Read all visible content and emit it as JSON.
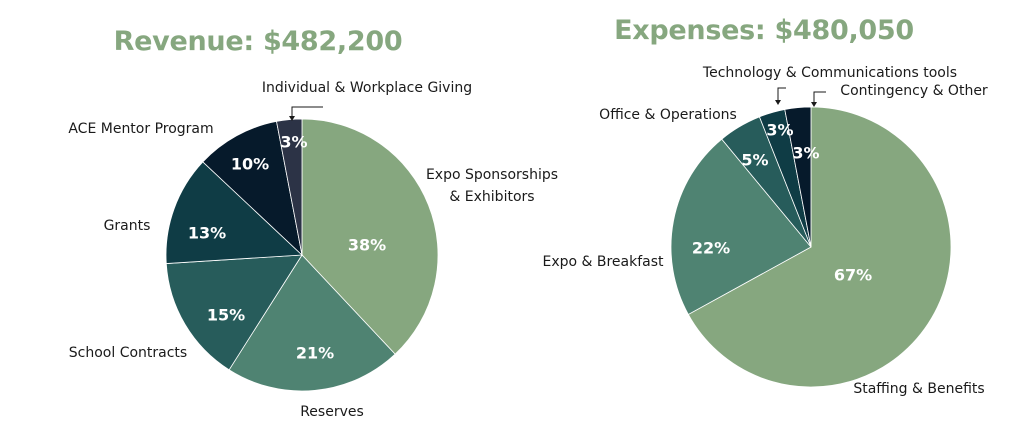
{
  "colors": {
    "title": "#86a77f",
    "label_text": "#1a1a1a",
    "pct_text": "#ffffff"
  },
  "chart_data": [
    {
      "type": "pie",
      "title": "Revenue: $482,200",
      "start": "12 o'clock",
      "direction": "clockwise",
      "slices": [
        {
          "label": "Expo Sponsorships\n& Exhibitors",
          "value": 38,
          "pct": "38%",
          "color": "#86a77f"
        },
        {
          "label": "Reserves",
          "value": 21,
          "pct": "21%",
          "color": "#4f8372"
        },
        {
          "label": "School Contracts",
          "value": 15,
          "pct": "15%",
          "color": "#275c5b"
        },
        {
          "label": "Grants",
          "value": 13,
          "pct": "13%",
          "color": "#0f3c45"
        },
        {
          "label": "ACE Mentor Program",
          "value": 10,
          "pct": "10%",
          "color": "#061a2b"
        },
        {
          "label": "Individual & Workplace Giving",
          "value": 3,
          "pct": "3%",
          "color": "#2c3346"
        }
      ]
    },
    {
      "type": "pie",
      "title": "Expenses: $480,050",
      "start": "12 o'clock",
      "direction": "clockwise",
      "slices": [
        {
          "label": "Staffing & Benefits",
          "value": 67,
          "pct": "67%",
          "color": "#86a77f"
        },
        {
          "label": "Expo & Breakfast",
          "value": 22,
          "pct": "22%",
          "color": "#4f8372"
        },
        {
          "label": "Office & Operations",
          "value": 5,
          "pct": "5%",
          "color": "#275c5b"
        },
        {
          "label": "Technology & Communications tools",
          "value": 3,
          "pct": "3%",
          "color": "#0f3c45"
        },
        {
          "label": "Contingency & Other",
          "value": 3,
          "pct": "3%",
          "color": "#061a2b"
        }
      ]
    }
  ]
}
